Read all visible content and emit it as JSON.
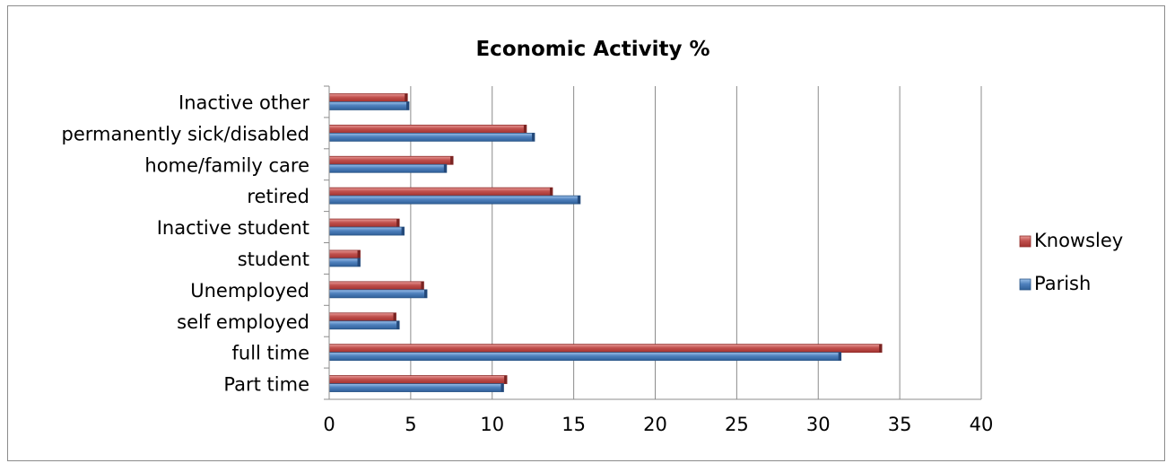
{
  "chart_data": {
    "type": "bar",
    "orientation": "horizontal",
    "title": "Economic Activity %",
    "categories": [
      "Part time",
      "full time",
      "self employed",
      "Unemployed",
      "student",
      "Inactive student",
      "retired",
      "home/family care",
      "permanently sick/disabled",
      "Inactive other"
    ],
    "series": [
      {
        "name": "Knowsley",
        "color": "#c0504d",
        "values": [
          10.9,
          33.9,
          4.1,
          5.8,
          1.9,
          4.3,
          13.7,
          7.6,
          12.1,
          4.8
        ]
      },
      {
        "name": "Parish",
        "color": "#4f81bd",
        "values": [
          10.7,
          31.4,
          4.3,
          6.0,
          1.9,
          4.6,
          15.4,
          7.2,
          12.6,
          4.9
        ]
      }
    ],
    "xlim": [
      0,
      40
    ],
    "xticks": [
      0,
      5,
      10,
      15,
      20,
      25,
      30,
      35,
      40
    ],
    "grid": "vertical",
    "legend": "right"
  }
}
